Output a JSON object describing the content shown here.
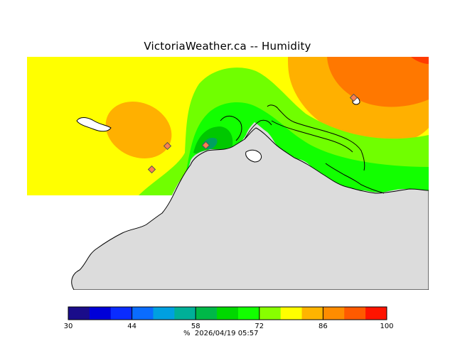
{
  "title": "VictoriaWeather.ca -- Humidity",
  "footer": {
    "unit": "%",
    "timestamp": "2026/04/19 05:57"
  },
  "legend": {
    "min": 30,
    "max": 100,
    "tick_labels": [
      "30",
      "44",
      "58",
      "72",
      "86",
      "100"
    ],
    "colors": [
      "#1a0c8a",
      "#0000d8",
      "#0a2cff",
      "#0a6cff",
      "#00a0e0",
      "#00b098",
      "#00b848",
      "#00d800",
      "#12ff00",
      "#88ff00",
      "#ffff00",
      "#ffb400",
      "#ff8c00",
      "#ff5a00",
      "#ff1400"
    ]
  },
  "map_colors": {
    "land": "#dcdcdc",
    "band_70_75": "#12ff00",
    "band_75_80": "#70ff00",
    "band_80_85": "#ffff00",
    "band_85_90": "#ffb000",
    "band_90_95": "#ff7800",
    "band_95_100": "#ff3c00",
    "band_65_70": "#00c800",
    "band_60_65": "#00a060",
    "station_fill": "#ff7f50"
  }
}
